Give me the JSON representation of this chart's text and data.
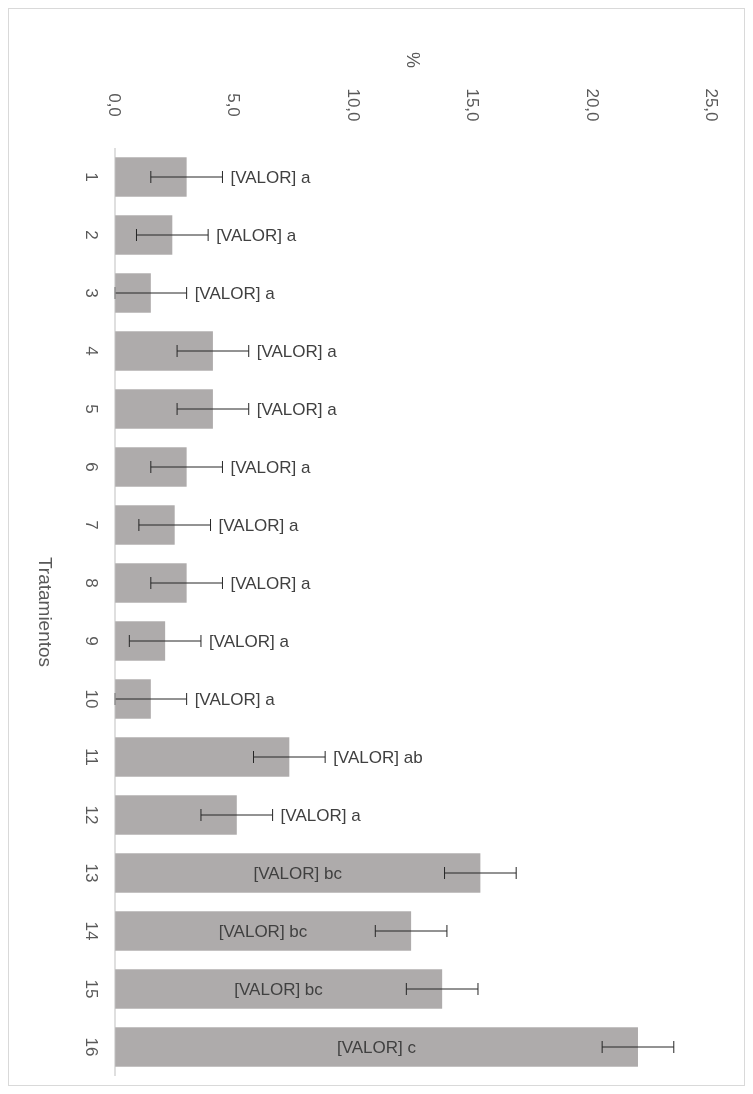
{
  "chart_data": {
    "type": "bar",
    "orientation": "horizontal",
    "x2label": "%",
    "ylabel": "Tratamientos",
    "categories": [
      "1",
      "2",
      "3",
      "4",
      "5",
      "6",
      "7",
      "8",
      "9",
      "10",
      "11",
      "12",
      "13",
      "14",
      "15",
      "16"
    ],
    "series": [
      {
        "axis": "x2",
        "color": "#aeabab",
        "values": [
          3.0,
          2.4,
          1.5,
          4.1,
          4.1,
          3.0,
          2.5,
          3.0,
          2.1,
          1.5,
          7.3,
          5.1,
          15.3,
          12.4,
          13.7,
          21.9
        ],
        "errors": [
          1.5,
          1.5,
          1.5,
          1.5,
          1.5,
          1.5,
          1.5,
          1.5,
          1.5,
          1.5,
          1.5,
          1.5,
          1.5,
          1.5,
          1.5,
          1.5
        ],
        "value_labels": [
          "[VALOR] a",
          "[VALOR] a",
          "[VALOR] a",
          "[VALOR] a",
          "[VALOR] a",
          "[VALOR] a",
          "[VALOR] a",
          "[VALOR] a",
          "[VALOR] a",
          "[VALOR] a",
          "[VALOR] ab",
          "[VALOR] a",
          "[VALOR] bc",
          "[VALOR] bc",
          "[VALOR] bc",
          "[VALOR] c"
        ]
      }
    ],
    "x2lim": [
      0,
      25
    ],
    "x2ticks": [
      {
        "value": 0,
        "label": "0,0"
      },
      {
        "value": 5,
        "label": "5,0"
      },
      {
        "value": 10,
        "label": "10,0"
      },
      {
        "value": 15,
        "label": "15,0"
      },
      {
        "value": 20,
        "label": "20,0"
      },
      {
        "value": 25,
        "label": "25,0"
      }
    ],
    "grid": false
  }
}
